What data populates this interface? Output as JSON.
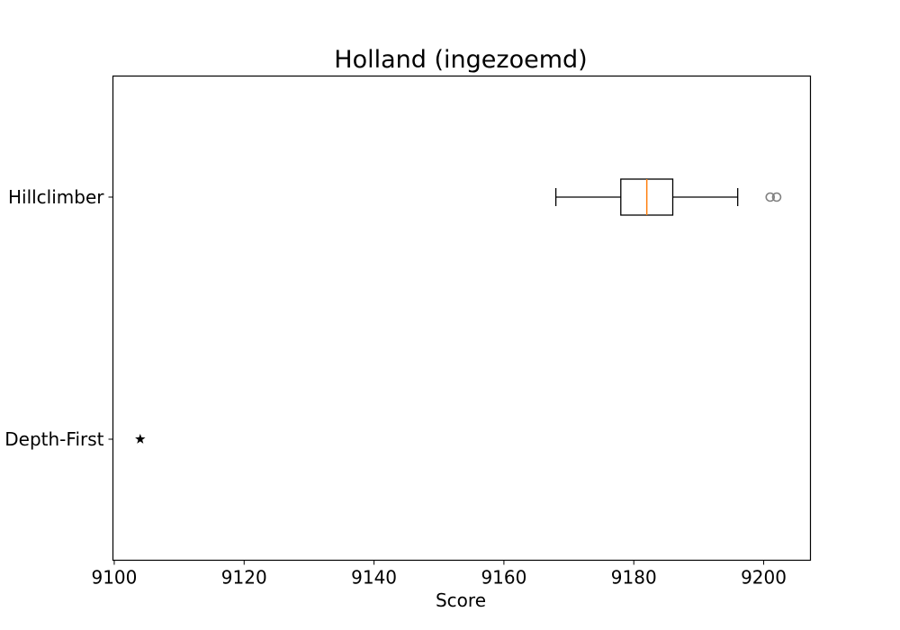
{
  "chart_data": {
    "type": "boxplot",
    "title": "Holland (ingezoemd)",
    "xlabel": "Score",
    "ylabel": "",
    "xlim": [
      9099.8,
      9207.2
    ],
    "xticks": [
      9100,
      9120,
      9140,
      9160,
      9180,
      9200
    ],
    "categories": [
      "Hillclimber",
      "Depth-First"
    ],
    "series": [
      {
        "category": "Hillclimber",
        "whisker_low": 9168,
        "q1": 9178,
        "median": 9182,
        "q3": 9186,
        "whisker_high": 9196,
        "outliers": [
          9201,
          9202
        ]
      },
      {
        "category": "Depth-First",
        "points": [
          9104
        ]
      }
    ],
    "grid": false,
    "colors": {
      "box": "#000000",
      "median": "#ff7f0e",
      "outlier": "#808080",
      "point": "#000000"
    }
  }
}
